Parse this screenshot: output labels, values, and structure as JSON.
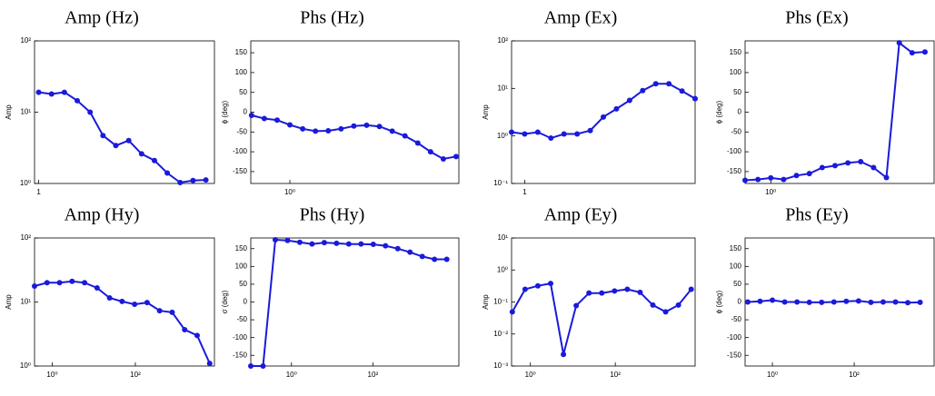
{
  "chart_data": [
    {
      "type": "line",
      "title": "Amp (Hz)",
      "ylabel": "Amp",
      "xscale": "log",
      "yscale": "log",
      "color": "#1a1adb",
      "x": [
        1,
        2,
        4,
        8,
        16,
        32,
        64,
        128,
        256,
        512,
        1024,
        2048,
        4096,
        8192
      ],
      "values": [
        19,
        18,
        19,
        14.5,
        10,
        4.7,
        3.4,
        4,
        2.6,
        2.1,
        1.4,
        1.03,
        1.1,
        1.12
      ],
      "xlim": [
        0.8,
        13000
      ],
      "ylim": [
        1,
        100
      ],
      "xticks": [
        1
      ],
      "yticks": [
        {
          "value": 1,
          "label": "10⁰"
        },
        {
          "value": 10,
          "label": "10¹"
        },
        {
          "value": 100,
          "label": "10²"
        }
      ]
    },
    {
      "type": "line",
      "title": "Phs (Hz)",
      "ylabel": "ϕ (deg)",
      "xscale": "log",
      "yscale": "linear",
      "color": "#1a1adb",
      "x": [
        0.125,
        0.25,
        0.5,
        1,
        2,
        4,
        8,
        16,
        32,
        64,
        128,
        256,
        512,
        1024,
        2048,
        4096,
        8192
      ],
      "values": [
        -8,
        -16,
        -20,
        -32,
        -42,
        -48,
        -47,
        -42,
        -35,
        -33,
        -36,
        -48,
        -60,
        -78,
        -100,
        -118,
        -112
      ],
      "xlim": [
        0.12,
        9500
      ],
      "ylim": [
        -180,
        180
      ],
      "xticks": [
        {
          "value": 1,
          "label": "10⁰"
        }
      ],
      "yticks": [
        -150,
        -100,
        -50,
        0,
        50,
        100,
        150
      ]
    },
    {
      "type": "line",
      "title": "Amp (Ex)",
      "ylabel": "Amp",
      "xscale": "log",
      "yscale": "log",
      "color": "#1a1adb",
      "x": [
        0.5,
        1,
        2,
        4,
        8,
        16,
        32,
        64,
        128,
        256,
        512,
        1024,
        2048,
        4096,
        8192
      ],
      "values": [
        1.2,
        1.1,
        1.2,
        0.9,
        1.1,
        1.1,
        1.3,
        2.5,
        3.7,
        5.6,
        9,
        12.5,
        12.5,
        8.8,
        6.1
      ],
      "xlim": [
        0.5,
        8192
      ],
      "ylim": [
        0.1,
        100
      ],
      "xticks": [
        1
      ],
      "yticks": [
        {
          "value": 0.1,
          "label": "10⁻¹"
        },
        {
          "value": 1,
          "label": "10⁰"
        },
        {
          "value": 10,
          "label": "10¹"
        },
        {
          "value": 100,
          "label": "10²"
        }
      ]
    },
    {
      "type": "line",
      "title": "Phs (Ex)",
      "ylabel": "ϕ (deg)",
      "xscale": "log",
      "yscale": "linear",
      "color": "#1a1adb",
      "x": [
        0.25,
        0.5,
        1,
        2,
        4,
        8,
        16,
        32,
        64,
        128,
        256,
        512,
        1024,
        2048,
        4096
      ],
      "values": [
        -172,
        -170,
        -166,
        -170,
        -160,
        -155,
        -140,
        -135,
        -128,
        -125,
        -140,
        -165,
        175,
        150,
        152
      ],
      "xlim": [
        0.25,
        6700
      ],
      "ylim": [
        -180,
        180
      ],
      "xticks": [
        {
          "value": 1,
          "label": "10⁰"
        }
      ],
      "yticks": [
        -150,
        -100,
        -50,
        0,
        50,
        100,
        150
      ]
    },
    {
      "type": "line",
      "title": "Amp (Hy)",
      "ylabel": "Amp",
      "xscale": "log",
      "yscale": "log",
      "color": "#1a1adb",
      "x": [
        0.375,
        0.75,
        1.5,
        3,
        6,
        12,
        24,
        48,
        96,
        192,
        384,
        768,
        1536,
        3072,
        6144
      ],
      "values": [
        17.7,
        20,
        20,
        21,
        20,
        16.6,
        11.6,
        10.2,
        9.2,
        9.8,
        7.3,
        6.9,
        3.7,
        3,
        1.1
      ],
      "xlim": [
        0.375,
        8000
      ],
      "ylim": [
        1,
        100
      ],
      "xticks": [
        {
          "value": 1,
          "label": "10⁰"
        },
        {
          "value": 100,
          "label": "10²"
        }
      ],
      "yticks": [
        {
          "value": 1,
          "label": "10⁰"
        },
        {
          "value": 10,
          "label": "10¹"
        },
        {
          "value": 100,
          "label": "10²"
        }
      ]
    },
    {
      "type": "line",
      "title": "Phs (Hy)",
      "ylabel": "σ (deg)",
      "xscale": "log",
      "yscale": "linear",
      "color": "#1a1adb",
      "x": [
        0.1,
        0.2,
        0.4,
        0.8,
        1.6,
        3.2,
        6.4,
        12.8,
        25.6,
        51.2,
        102.4,
        204.8,
        409.6,
        819.2,
        1638.4,
        3276.8,
        6553.6
      ],
      "values": [
        -180,
        -180,
        175,
        173,
        168,
        163,
        167,
        165,
        163,
        163,
        162,
        158,
        150,
        140,
        128,
        120,
        120
      ],
      "xlim": [
        0.1,
        13000
      ],
      "ylim": [
        -180,
        180
      ],
      "xticks": [
        {
          "value": 1,
          "label": "10⁰"
        },
        {
          "value": 100,
          "label": "10²"
        }
      ],
      "yticks": [
        -150,
        -100,
        -50,
        0,
        50,
        100,
        150
      ]
    },
    {
      "type": "line",
      "title": "Amp (Ey)",
      "ylabel": "Amp",
      "xscale": "log",
      "yscale": "log",
      "color": "#1a1adb",
      "x": [
        0.375,
        0.75,
        1.5,
        3,
        6,
        12,
        24,
        48,
        96,
        192,
        384,
        768,
        1536,
        3072,
        6144
      ],
      "values": [
        0.049,
        0.25,
        0.32,
        0.38,
        0.0023,
        0.077,
        0.19,
        0.19,
        0.22,
        0.25,
        0.2,
        0.08,
        0.049,
        0.08,
        0.25
      ],
      "xlim": [
        0.36,
        7600
      ],
      "ylim": [
        0.001,
        10
      ],
      "xticks": [
        {
          "value": 1,
          "label": "10⁰"
        },
        {
          "value": 100,
          "label": "10²"
        }
      ],
      "yticks": [
        {
          "value": 0.001,
          "label": "10⁻³"
        },
        {
          "value": 0.01,
          "label": "10⁻²"
        },
        {
          "value": 0.1,
          "label": "10⁻¹"
        },
        {
          "value": 1,
          "label": "10⁰"
        },
        {
          "value": 10,
          "label": "10¹"
        }
      ]
    },
    {
      "type": "line",
      "title": "Phs (Ey)",
      "ylabel": "ϕ (deg)",
      "xscale": "log",
      "yscale": "linear",
      "color": "#1a1adb",
      "x": [
        0.25,
        0.5,
        1,
        2,
        4,
        8,
        16,
        32,
        64,
        128,
        256,
        512,
        1024,
        2048,
        4096
      ],
      "values": [
        0,
        2,
        5,
        0,
        0,
        -1,
        -1,
        0,
        2,
        3,
        -1,
        0,
        0,
        -2,
        -1
      ],
      "xlim": [
        0.215,
        9000
      ],
      "ylim": [
        -180,
        180
      ],
      "xticks": [
        {
          "value": 1,
          "label": "10⁰"
        },
        {
          "value": 100,
          "label": "10²"
        }
      ],
      "yticks": [
        -150,
        -100,
        -50,
        0,
        50,
        100,
        150
      ]
    }
  ]
}
